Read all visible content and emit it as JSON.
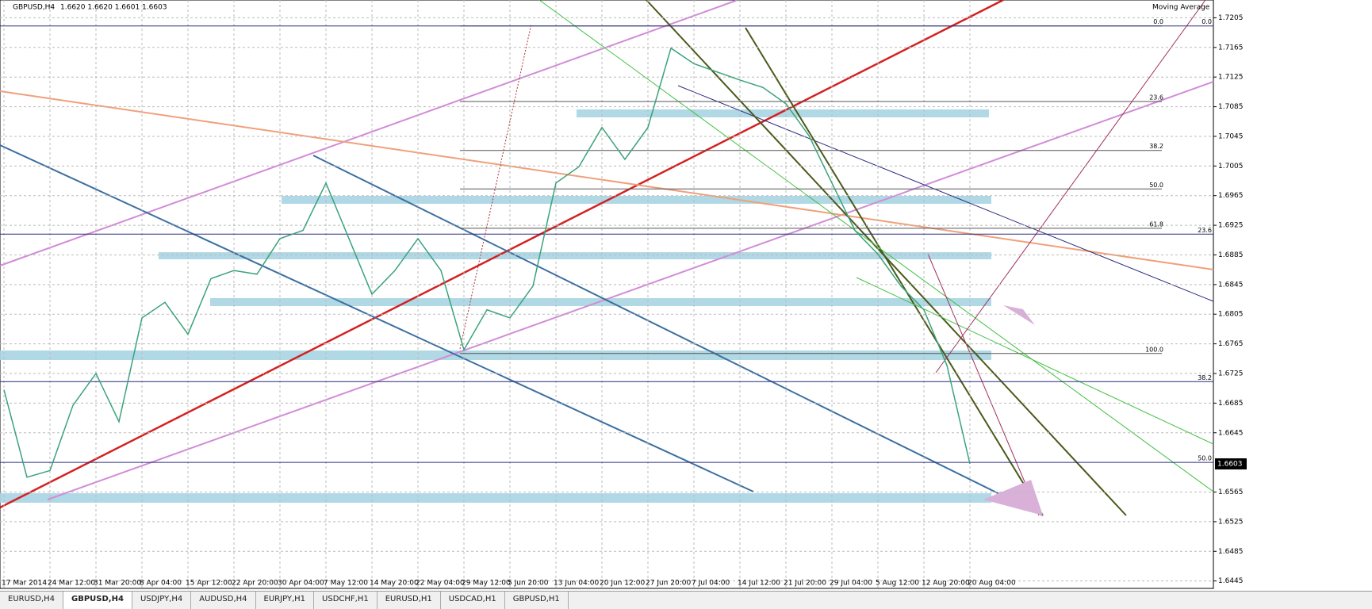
{
  "header": {
    "symbol": "GBPUSD,H4",
    "quote": "1.6620 1.6620 1.6601 1.6603",
    "indicator": "Moving Average"
  },
  "chart_data": {
    "type": "line",
    "categories": [
      "17 Mar 2014",
      null,
      "24 Mar 12:00",
      null,
      "31 Mar 20:00",
      null,
      "8 Apr 04:00",
      null,
      "15 Apr 12:00",
      null,
      "22 Apr 20:00",
      null,
      "30 Apr 04:00",
      null,
      "7 May 12:00",
      null,
      "14 May 20:00",
      null,
      "22 May 04:00",
      null,
      "29 May 12:00",
      null,
      "5 Jun 20:00",
      null,
      "13 Jun 04:00",
      null,
      "20 Jun 12:00",
      null,
      "27 Jun 20:00",
      null,
      "7 Jul 04:00",
      null,
      "14 Jul 12:00",
      null,
      "21 Jul 20:00",
      null,
      "29 Jul 04:00",
      null,
      "5 Aug 12:00",
      null,
      "12 Aug 20:00",
      null,
      "20 Aug 04:00"
    ],
    "series": [
      {
        "name": "GBPUSD,H4",
        "color": "#3aa37a",
        "values": [
          1.6703,
          1.6585,
          1.6594,
          1.6682,
          1.6725,
          1.666,
          1.68,
          1.6821,
          1.6778,
          1.6853,
          1.6864,
          1.6859,
          1.6907,
          1.6918,
          1.6982,
          1.6907,
          1.6832,
          1.6864,
          1.6907,
          1.6864,
          1.6757,
          1.6811,
          1.68,
          1.6843,
          1.6982,
          1.7004,
          1.7057,
          1.7014,
          1.7057,
          1.7164,
          1.7143,
          1.7132,
          1.7121,
          1.7111,
          1.7089,
          1.7046,
          1.6982,
          1.6918,
          1.6886,
          1.6843,
          1.6811,
          1.6736,
          1.6603
        ]
      }
    ],
    "ylim": [
      1.6435,
      1.7229
    ],
    "yticks": [
      1.6445,
      1.6485,
      1.6525,
      1.6565,
      1.6645,
      1.6685,
      1.6725,
      1.6765,
      1.6805,
      1.6845,
      1.6885,
      1.6925,
      1.6965,
      1.7005,
      1.7045,
      1.7085,
      1.7125,
      1.7165,
      1.7205
    ],
    "last_price": 1.6603,
    "grid": true,
    "fib_levels": [
      {
        "label": "0.0",
        "value": 1.7194,
        "side": "left"
      },
      {
        "label": "23.6",
        "value": 1.7092,
        "side": "left"
      },
      {
        "label": "38.2",
        "value": 1.7026,
        "side": "left"
      },
      {
        "label": "50.0",
        "value": 1.6974,
        "side": "left"
      },
      {
        "label": "61.8",
        "value": 1.6921,
        "side": "left"
      },
      {
        "label": "100.0",
        "value": 1.6752,
        "side": "left"
      },
      {
        "label": "0.0",
        "value": 1.7194,
        "side": "right"
      },
      {
        "label": "23.6",
        "value": 1.6913,
        "side": "right"
      },
      {
        "label": "38.2",
        "value": 1.6714,
        "side": "right"
      },
      {
        "label": "50.0",
        "value": 1.6605,
        "side": "right"
      }
    ]
  },
  "tabs": [
    "EURUSD,H4",
    "GBPUSD,H4",
    "USDJPY,H4",
    "AUDUSD,H4",
    "EURJPY,H1",
    "USDCHF,H1",
    "EURUSD,H1",
    "USDCAD,H1",
    "GBPUSD,H1"
  ],
  "active_tab": 1
}
